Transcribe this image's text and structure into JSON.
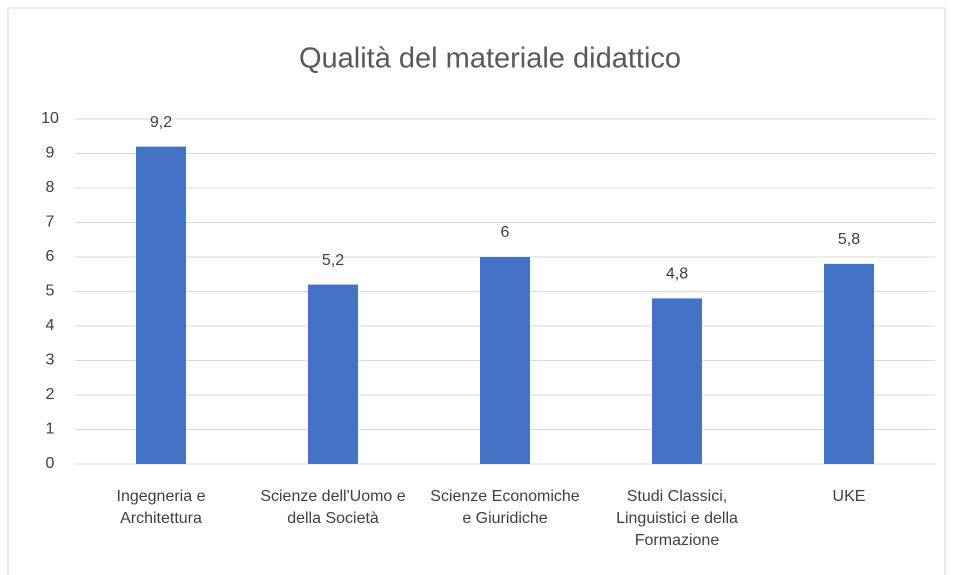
{
  "chart_data": {
    "type": "bar",
    "title": "Qualità del materiale didattico",
    "categories": [
      "Ingegneria e Architettura",
      "Scienze dell'Uomo e della Società",
      "Scienze Economiche e Giuridiche",
      "Studi Classici, Linguistici e della Formazione",
      "UKE"
    ],
    "values": [
      9.2,
      5.2,
      6,
      4.8,
      5.8
    ],
    "value_labels": [
      "9,2",
      "5,2",
      "6",
      "4,8",
      "5,8"
    ],
    "color": "#4472c4",
    "ylim": [
      0,
      10
    ],
    "yticks": [
      0,
      1,
      2,
      3,
      4,
      5,
      6,
      7,
      8,
      9,
      10
    ],
    "grid": true
  }
}
